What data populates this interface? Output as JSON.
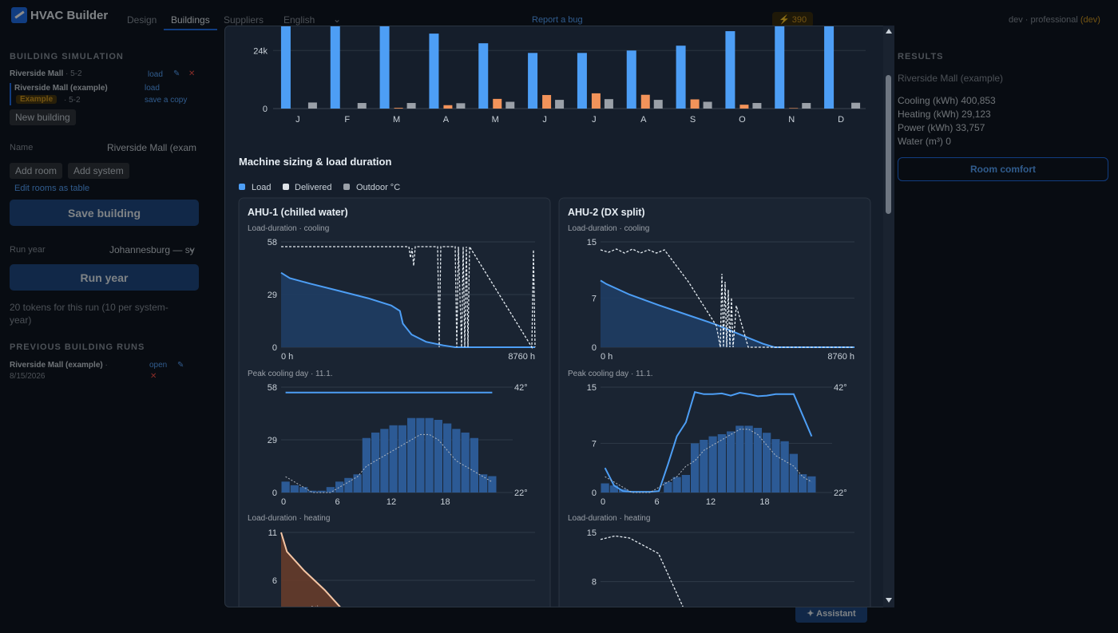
{
  "app": {
    "title": "HVAC Builder"
  },
  "nav": {
    "design": "Design",
    "buildings": "Buildings",
    "suppliers": "Suppliers",
    "language": "English",
    "report_bug": "Report a bug",
    "tokens": "⚡ 390",
    "dev_label": "dev · professional",
    "dev_badge": "(dev)"
  },
  "left": {
    "section_title": "BUILDING SIMULATION",
    "building_name": "Riverside Mall",
    "building_ver": " · 5-2",
    "load": "load",
    "edit_icon": "✎",
    "delete_icon": "✕",
    "example_name": "Riverside Mall (example)",
    "example_badge": "Example",
    "example_ver": "· 5-2",
    "example_load": "load",
    "save_copy": "save a copy",
    "new_building": "New building",
    "name_label": "Name",
    "name_value": "Riverside Mall (exam",
    "add_room": "Add room",
    "add_system": "Add system",
    "edit_table": "Edit rooms as table",
    "save_building": "Save building",
    "run_year_label": "Run year",
    "run_year_value": "Johannesburg — sy",
    "run_year_btn": "Run year",
    "token_note": "20 tokens for this run (10 per system-year)",
    "prev_title": "PREVIOUS BUILDING RUNS",
    "prev_name": "Riverside Mall (example)",
    "prev_sep": " ·",
    "prev_date": "8/15/2026",
    "prev_open": "open"
  },
  "right": {
    "title": "RESULTS",
    "building": "Riverside Mall (example)",
    "cooling": "Cooling (kWh) 400,853",
    "heating": "Heating (kWh) 29,123",
    "power": "Power (kWh) 33,757",
    "water": "Water (m³) 0",
    "room_comfort": "Room comfort"
  },
  "assistant": "✦ Assistant",
  "modal": {
    "section_title": "Machine sizing & load duration",
    "legend": [
      "Load",
      "Delivered",
      "Outdoor °C"
    ],
    "cards": [
      {
        "title": "AHU-1 (chilled water)",
        "ld_cool": "Load-duration · cooling",
        "peak": "Peak cooling day · 11.1.",
        "ld_heat": "Load-duration · heating"
      },
      {
        "title": "AHU-2 (DX split)",
        "ld_cool": "Load-duration · cooling",
        "peak": "Peak cooling day · 11.1.",
        "ld_heat": "Load-duration · heating"
      }
    ]
  },
  "colors": {
    "load": "#4d9ef5",
    "delivered": "#dfe3e8",
    "outdoor": "#9aa0a8",
    "heating": "#f2935a",
    "bar": "#2c5a95"
  },
  "chart_data": [
    {
      "type": "bar",
      "title": "",
      "categories": [
        "J",
        "F",
        "M",
        "A",
        "M",
        "J",
        "J",
        "A",
        "S",
        "O",
        "N",
        "D"
      ],
      "ytick_labels": [
        "0",
        "24k"
      ],
      "series": [
        {
          "name": "",
          "values": [
            34000,
            34000,
            34000,
            31000,
            27000,
            23000,
            23000,
            24000,
            26000,
            32000,
            34000,
            34000
          ]
        },
        {
          "name": "",
          "values": [
            0,
            0,
            300,
            1400,
            4000,
            5600,
            6300,
            5700,
            3800,
            1600,
            200,
            0
          ]
        },
        {
          "name": "",
          "values": [
            2500,
            2300,
            2300,
            2200,
            2800,
            3600,
            3900,
            3600,
            2800,
            2300,
            2300,
            2400
          ]
        }
      ],
      "ylim": [
        0,
        34000
      ]
    },
    {
      "type": "line",
      "title": "AHU-1 (chilled water) Load-duration · cooling",
      "x_labels": [
        "0 h",
        "8760 h"
      ],
      "ylim": [
        0,
        58
      ],
      "yticks": [
        0,
        29,
        58
      ],
      "series": [
        {
          "name": "Load",
          "x": [
            0,
            300,
            1000,
            2000,
            3000,
            3800,
            4100,
            4200,
            4500,
            5000,
            5600,
            6000,
            8760
          ],
          "y": [
            41,
            38,
            35,
            31,
            27,
            23,
            20,
            13,
            7,
            3,
            1,
            0,
            0
          ]
        }
      ]
    },
    {
      "type": "bar",
      "title": "AHU-1 (chilled water) Peak cooling day · 11.1.",
      "x": [
        0,
        1,
        2,
        3,
        4,
        5,
        6,
        7,
        8,
        9,
        10,
        11,
        12,
        13,
        14,
        15,
        16,
        17,
        18,
        19,
        20,
        21,
        22,
        23
      ],
      "xticks": [
        0,
        6,
        12,
        18
      ],
      "ylim": [
        0,
        58
      ],
      "yticks": [
        0,
        29,
        58
      ],
      "y2ticks": [
        "22°",
        "42°"
      ],
      "series": [
        {
          "name": "Load",
          "values": [
            6,
            4,
            3,
            1,
            1,
            3,
            6,
            8,
            10,
            30,
            33,
            35,
            37,
            37,
            41,
            41,
            41,
            40,
            38,
            35,
            33,
            30,
            10,
            9
          ]
        },
        {
          "name": "Delivered",
          "values": [
            55,
            55,
            55,
            55,
            55,
            55,
            55,
            55,
            55,
            55,
            55,
            55,
            55,
            55,
            55,
            55,
            55,
            55,
            55,
            55,
            55,
            55,
            55,
            55
          ]
        },
        {
          "name": "Outdoor °C",
          "values": [
            25,
            24,
            23,
            22,
            22,
            22,
            23,
            24,
            25,
            27,
            28,
            29,
            30,
            31,
            32,
            33,
            33,
            32,
            30,
            28,
            27,
            26,
            25,
            24
          ]
        }
      ]
    },
    {
      "type": "line",
      "title": "AHU-2 (DX split) Load-duration · cooling",
      "x_labels": [
        "0 h",
        "8760 h"
      ],
      "ylim": [
        0,
        15
      ],
      "yticks": [
        0,
        7,
        15
      ],
      "series": [
        {
          "name": "Load",
          "x": [
            0,
            200,
            1000,
            2000,
            3000,
            4000,
            5000,
            5600,
            6000,
            8760
          ],
          "y": [
            9.5,
            9,
            7.5,
            6,
            4.6,
            3.2,
            1.5,
            0.5,
            0,
            0
          ]
        }
      ]
    },
    {
      "type": "bar",
      "title": "AHU-2 (DX split) Peak cooling day · 11.1.",
      "x": [
        0,
        1,
        2,
        3,
        4,
        5,
        6,
        7,
        8,
        9,
        10,
        11,
        12,
        13,
        14,
        15,
        16,
        17,
        18,
        19,
        20,
        21,
        22,
        23
      ],
      "xticks": [
        0,
        6,
        12,
        18
      ],
      "ylim": [
        0,
        15
      ],
      "yticks": [
        0,
        7,
        15
      ],
      "y2ticks": [
        "22°",
        "42°"
      ],
      "series": [
        {
          "name": "Load",
          "values": [
            1.3,
            1,
            0.5,
            0,
            0,
            0,
            0,
            1.5,
            2.2,
            2.5,
            7,
            7.5,
            8,
            8.3,
            8.7,
            9.5,
            9.5,
            9.2,
            8.5,
            7.6,
            7.3,
            5.5,
            2.6,
            2.3
          ]
        },
        {
          "name": "Delivered",
          "values": [
            3.5,
            1,
            0.2,
            0.1,
            0.1,
            0.1,
            0.2,
            4,
            8,
            10,
            14.3,
            14,
            14,
            14.1,
            13.8,
            14.2,
            14,
            13.7,
            13.8,
            14,
            14,
            14,
            11,
            8
          ]
        },
        {
          "name": "Outdoor °C",
          "values": [
            25,
            24,
            23,
            22,
            22,
            22,
            23,
            24,
            25,
            27,
            28,
            30,
            31,
            32,
            33,
            34,
            34,
            33,
            31,
            29,
            28,
            27,
            25,
            24
          ]
        }
      ]
    },
    {
      "type": "line",
      "title": "AHU-1 (chilled water) Load-duration · heating",
      "ylim": [
        0,
        11
      ],
      "yticks": [
        6,
        11
      ],
      "series": [
        {
          "name": "Load",
          "x": [
            0,
            20,
            80,
            150,
            300
          ],
          "y": [
            11,
            9,
            7,
            5,
            0
          ]
        }
      ]
    },
    {
      "type": "line",
      "title": "AHU-2 (DX split) Load-duration · heating",
      "ylim": [
        0,
        15
      ],
      "yticks": [
        8,
        15
      ],
      "series": [
        {
          "name": "Delivered",
          "x": [
            0,
            50,
            100,
            200,
            300
          ],
          "y": [
            14,
            14.5,
            14.2,
            12,
            3
          ]
        }
      ]
    }
  ]
}
